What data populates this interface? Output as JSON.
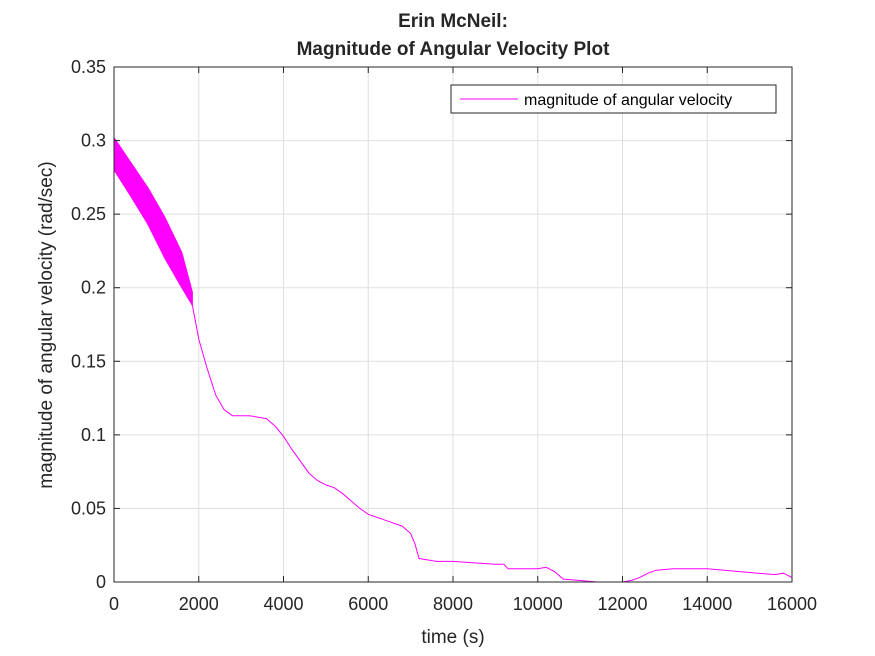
{
  "chart_data": {
    "type": "line",
    "title": "Erin McNeil:",
    "subtitle": "Magnitude of Angular Velocity Plot",
    "xlabel": "time (s)",
    "ylabel": "magnitude of angular velocity (rad/sec)",
    "xlim": [
      0,
      16000
    ],
    "ylim": [
      0,
      0.35
    ],
    "xticks": [
      0,
      2000,
      4000,
      6000,
      8000,
      10000,
      12000,
      14000,
      16000
    ],
    "xtick_labels": [
      "0",
      "2000",
      "4000",
      "6000",
      "8000",
      "10000",
      "12000",
      "14000",
      "16000"
    ],
    "yticks": [
      0,
      0.05,
      0.1,
      0.15,
      0.2,
      0.25,
      0.3,
      0.35
    ],
    "ytick_labels": [
      "0",
      "0.05",
      "0.1",
      "0.15",
      "0.2",
      "0.25",
      "0.3",
      "0.35"
    ],
    "grid": true,
    "legend_position": "top-right",
    "series": [
      {
        "name": "magnitude of angular velocity",
        "color": "#ff00ff",
        "band": {
          "x": [
            0,
            400,
            800,
            1200,
            1600,
            1850
          ],
          "upper": [
            0.302,
            0.285,
            0.268,
            0.248,
            0.224,
            0.197
          ],
          "lower": [
            0.28,
            0.262,
            0.243,
            0.22,
            0.2,
            0.188
          ]
        },
        "x": [
          1850,
          2000,
          2200,
          2400,
          2600,
          2800,
          3200,
          3600,
          3800,
          4000,
          4200,
          4400,
          4600,
          4800,
          5000,
          5200,
          5400,
          5600,
          5800,
          6000,
          6400,
          6800,
          7000,
          7100,
          7200,
          7400,
          7600,
          8000,
          8500,
          9000,
          9200,
          9300,
          9500,
          10000,
          10200,
          10400,
          10600,
          11000,
          11400,
          11800,
          12000,
          12200,
          12400,
          12600,
          12800,
          13200,
          13600,
          14000,
          14400,
          14800,
          15200,
          15600,
          15800,
          16000
        ],
        "y": [
          0.188,
          0.165,
          0.145,
          0.127,
          0.117,
          0.113,
          0.113,
          0.111,
          0.106,
          0.099,
          0.09,
          0.082,
          0.074,
          0.069,
          0.066,
          0.064,
          0.06,
          0.055,
          0.05,
          0.046,
          0.042,
          0.038,
          0.033,
          0.026,
          0.016,
          0.015,
          0.014,
          0.014,
          0.013,
          0.012,
          0.012,
          0.009,
          0.009,
          0.009,
          0.01,
          0.007,
          0.002,
          0.001,
          0.0,
          0.0,
          0.0,
          0.001,
          0.003,
          0.006,
          0.008,
          0.009,
          0.009,
          0.009,
          0.008,
          0.007,
          0.006,
          0.005,
          0.006,
          0.003
        ]
      }
    ]
  }
}
